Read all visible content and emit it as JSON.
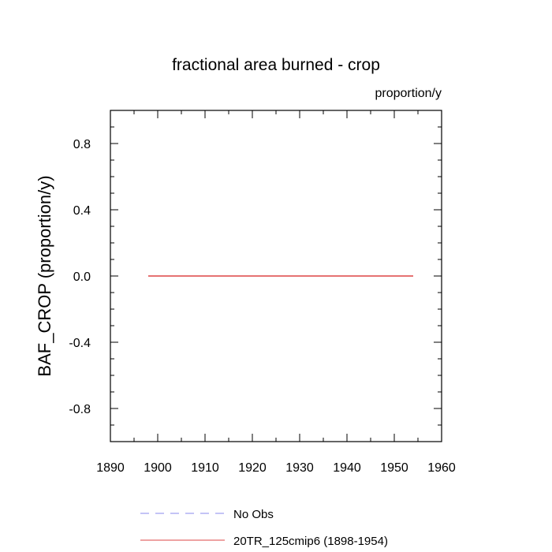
{
  "chart_data": {
    "type": "line",
    "title": "fractional area burned - crop",
    "units": "proportion/y",
    "ylabel": "BAF_CROP  (proportion/y)",
    "xlabel": "",
    "xlim": [
      1890,
      1960
    ],
    "ylim": [
      -1.0,
      1.0
    ],
    "x_ticks": [
      1890,
      1900,
      1910,
      1920,
      1930,
      1940,
      1950,
      1960
    ],
    "x_minor_step": 5,
    "y_ticks": [
      -0.8,
      -0.4,
      0.0,
      0.4,
      0.8
    ],
    "y_tick_labels": [
      "-0.8",
      "-0.4",
      "0.0",
      "0.4",
      "0.8"
    ],
    "y_minor_step": 0.1,
    "grid": false,
    "legend_position": "bottom",
    "series": [
      {
        "name": "No Obs",
        "color": "#8888ee",
        "dash": "dashed",
        "x": [],
        "y": []
      },
      {
        "name": "20TR_125cmip6 (1898-1954)",
        "color": "#dd4444",
        "dash": "solid",
        "x": [
          1898,
          1954
        ],
        "y": [
          0.0,
          0.0
        ]
      }
    ]
  }
}
